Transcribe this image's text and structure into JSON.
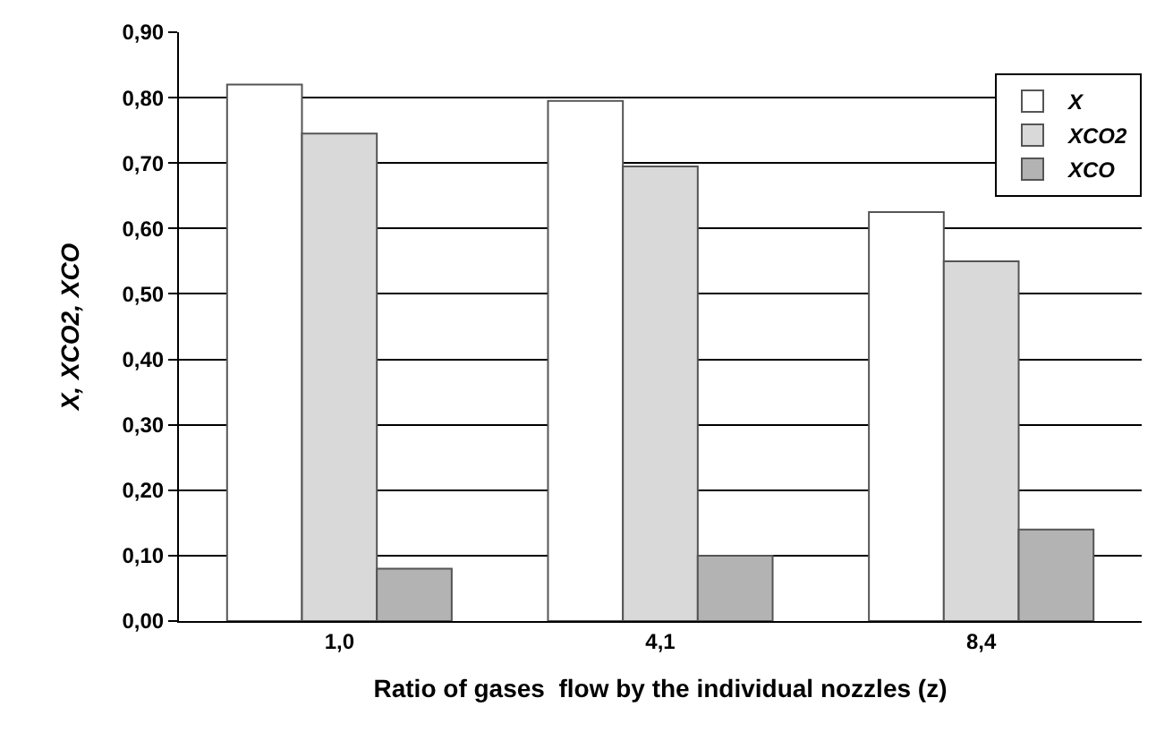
{
  "chart_data": {
    "type": "bar",
    "xlabel": "Ratio of gases  flow by the individual nozzles (z)",
    "ylabel": "X, XCO2, XCO",
    "categories": [
      "1,0",
      "4,1",
      "8,4"
    ],
    "series": [
      {
        "name": "X",
        "color": "#ffffff",
        "values": [
          0.82,
          0.795,
          0.625
        ]
      },
      {
        "name": "XCO2",
        "color": "#d9d9d9",
        "values": [
          0.745,
          0.695,
          0.55
        ]
      },
      {
        "name": "XCO",
        "color": "#b3b3b3",
        "values": [
          0.08,
          0.1,
          0.14
        ]
      }
    ],
    "ylim": [
      0,
      0.9
    ],
    "yticks": [
      {
        "value": 0,
        "label": "0,00"
      },
      {
        "value": 0.1,
        "label": "0,10"
      },
      {
        "value": 0.2,
        "label": "0,20"
      },
      {
        "value": 0.3,
        "label": "0,30"
      },
      {
        "value": 0.4,
        "label": "0,40"
      },
      {
        "value": 0.5,
        "label": "0,50"
      },
      {
        "value": 0.6,
        "label": "0,60"
      },
      {
        "value": 0.7,
        "label": "0,70"
      },
      {
        "value": 0.8,
        "label": "0,80"
      },
      {
        "value": 0.9,
        "label": "0,90"
      }
    ],
    "grid": "y",
    "legend": "top right"
  }
}
